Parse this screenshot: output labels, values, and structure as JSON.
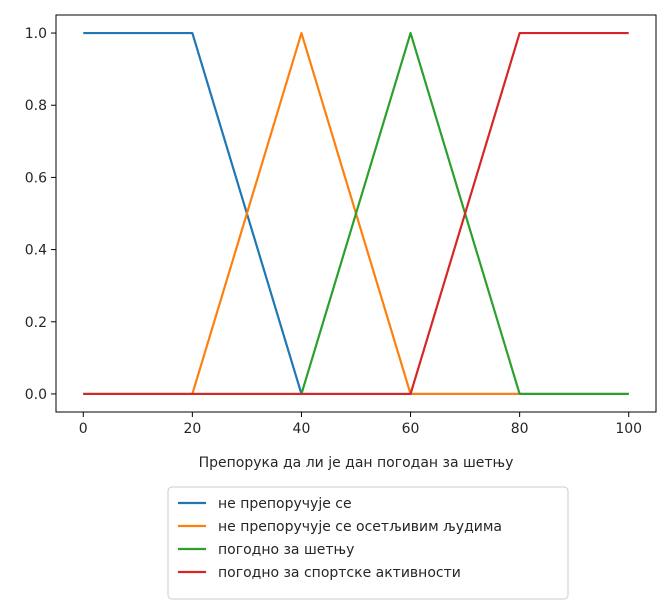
{
  "chart_data": {
    "type": "line",
    "title": "",
    "xlabel": "Препорука да ли је дан погодан за шетњу",
    "ylabel": "",
    "xlim": [
      -5,
      105
    ],
    "ylim": [
      -0.05,
      1.05
    ],
    "x_ticks": [
      0,
      20,
      40,
      60,
      80,
      100
    ],
    "y_ticks": [
      0.0,
      0.2,
      0.4,
      0.6,
      0.8,
      1.0
    ],
    "x_tick_labels": [
      "0",
      "20",
      "40",
      "60",
      "80",
      "100"
    ],
    "y_tick_labels": [
      "0.0",
      "0.2",
      "0.4",
      "0.6",
      "0.8",
      "1.0"
    ],
    "grid": false,
    "legend_position": "below",
    "series": [
      {
        "name": "не препоручује се",
        "color": "#1f77b4",
        "x": [
          0,
          20,
          40,
          100
        ],
        "y": [
          1,
          1,
          0,
          0
        ]
      },
      {
        "name": "не препоручује се осетљивим људима",
        "color": "#ff7f0e",
        "x": [
          0,
          20,
          40,
          60,
          100
        ],
        "y": [
          0,
          0,
          1,
          0,
          0
        ]
      },
      {
        "name": "погодно за шетњу",
        "color": "#2ca02c",
        "x": [
          0,
          40,
          60,
          80,
          100
        ],
        "y": [
          0,
          0,
          1,
          0,
          0
        ]
      },
      {
        "name": "погодно за спортске активности",
        "color": "#d62728",
        "x": [
          0,
          60,
          80,
          100
        ],
        "y": [
          0,
          0,
          1,
          1
        ]
      }
    ]
  }
}
